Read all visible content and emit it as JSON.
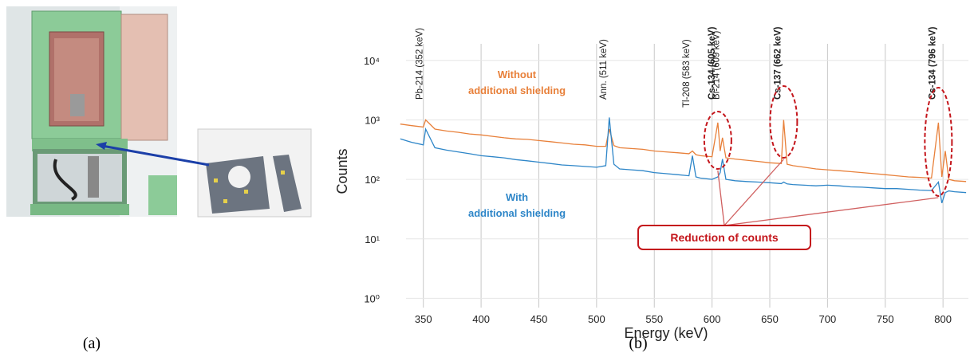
{
  "panel_labels": [
    "(a)",
    "(b)"
  ],
  "chart_data": {
    "type": "line",
    "x_label": "Energy (keV)",
    "y_label": "Counts",
    "log_y": true,
    "grid": true,
    "xlim": [
      335,
      822
    ],
    "xticks": [
      350,
      400,
      450,
      500,
      550,
      600,
      650,
      700,
      750,
      800
    ],
    "ylim": [
      0.7,
      19000
    ],
    "yticks": [
      {
        "value": 1,
        "label": "10⁰"
      },
      {
        "value": 10,
        "label": "10¹"
      },
      {
        "value": 100,
        "label": "10²"
      },
      {
        "value": 1000,
        "label": "10³"
      },
      {
        "value": 10000,
        "label": "10⁴"
      }
    ],
    "x": [
      330,
      340,
      350,
      352,
      360,
      370,
      380,
      390,
      400,
      410,
      420,
      430,
      440,
      450,
      460,
      470,
      480,
      490,
      500,
      508,
      511,
      515,
      520,
      530,
      540,
      550,
      560,
      570,
      580,
      583,
      586,
      590,
      600,
      605,
      607,
      609,
      612,
      620,
      630,
      640,
      650,
      660,
      662,
      665,
      670,
      680,
      690,
      700,
      710,
      720,
      730,
      740,
      750,
      760,
      770,
      780,
      790,
      796,
      799,
      802,
      805,
      810,
      820
    ],
    "series": [
      {
        "name": "Without additional shielding",
        "color": "#e8803a",
        "values": [
          850,
          800,
          760,
          1000,
          700,
          650,
          620,
          580,
          560,
          530,
          500,
          480,
          470,
          450,
          430,
          410,
          390,
          380,
          360,
          360,
          700,
          370,
          340,
          330,
          320,
          300,
          290,
          280,
          270,
          300,
          260,
          250,
          240,
          900,
          300,
          500,
          230,
          220,
          210,
          200,
          190,
          185,
          1000,
          180,
          170,
          160,
          150,
          145,
          140,
          135,
          130,
          125,
          120,
          115,
          110,
          108,
          105,
          900,
          110,
          300,
          100,
          95,
          92
        ]
      },
      {
        "name": "With additional shielding",
        "color": "#2e86c8",
        "values": [
          480,
          420,
          380,
          700,
          340,
          310,
          290,
          270,
          250,
          240,
          230,
          215,
          205,
          195,
          185,
          175,
          170,
          165,
          160,
          170,
          1100,
          180,
          150,
          145,
          140,
          130,
          125,
          120,
          115,
          250,
          110,
          105,
          100,
          110,
          130,
          220,
          100,
          95,
          92,
          90,
          88,
          85,
          90,
          84,
          82,
          80,
          78,
          80,
          78,
          75,
          74,
          72,
          70,
          70,
          68,
          66,
          65,
          90,
          40,
          60,
          64,
          62,
          60
        ]
      }
    ],
    "annotations": [
      {
        "text": "Pb-214 (352 keV)",
        "x": 352,
        "bold": false
      },
      {
        "text": "Ann. (511 keV)",
        "x": 511,
        "bold": false
      },
      {
        "text": "Tl-208 (583 keV)",
        "x": 583,
        "bold": false
      },
      {
        "text": "Cs-134 (605 keV)",
        "x": 605,
        "bold": true
      },
      {
        "text": "Bi-214 (609 keV)",
        "x": 609,
        "bold": false
      },
      {
        "text": "Cs-137 (662 keV)",
        "x": 662,
        "bold": true
      },
      {
        "text": "Cs-134 (796 keV)",
        "x": 796,
        "bold": true
      }
    ],
    "callout": {
      "text": "Reduction of counts",
      "targets": [
        605,
        662,
        796
      ]
    }
  }
}
